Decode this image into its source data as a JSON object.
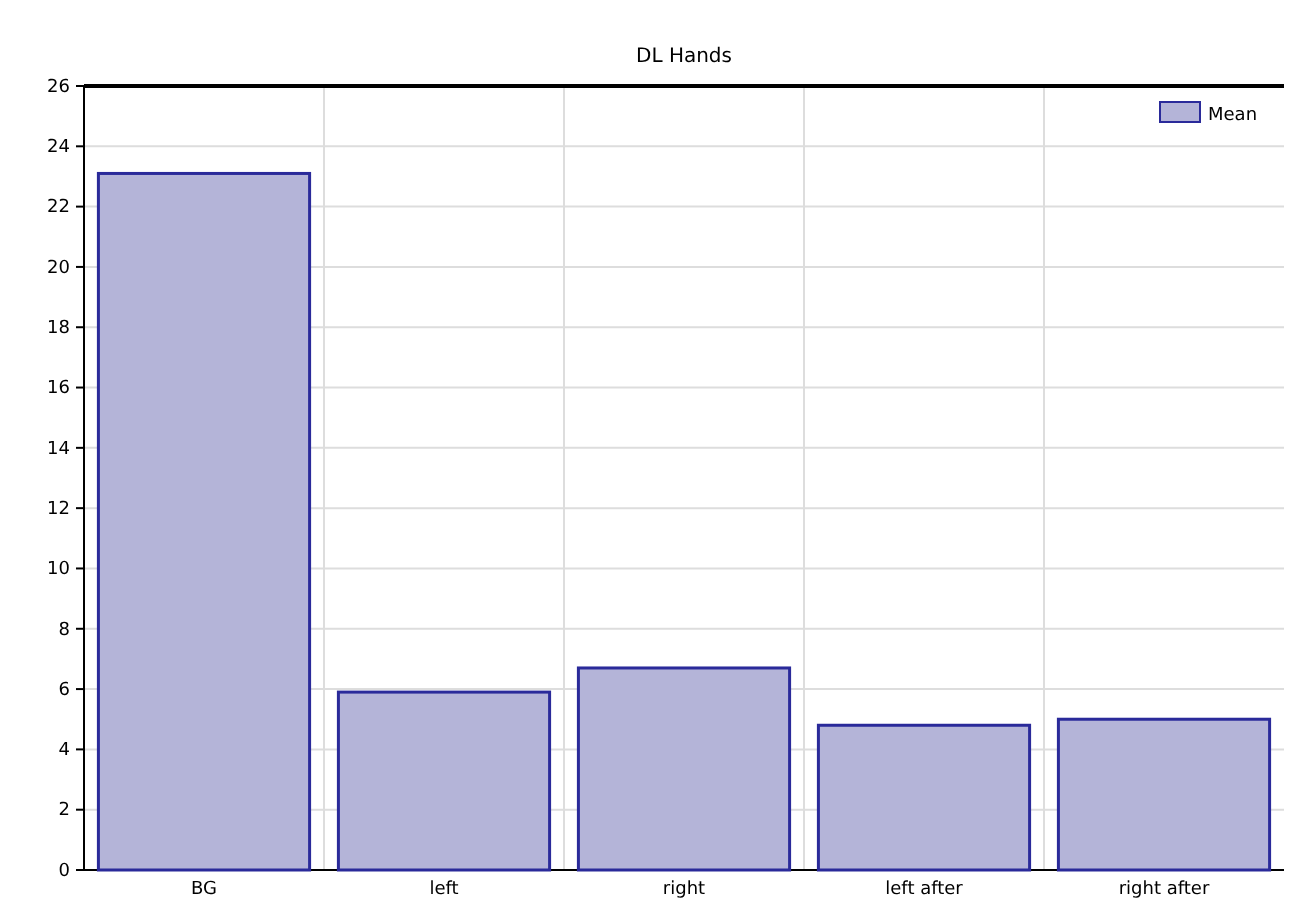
{
  "chart_data": {
    "type": "bar",
    "title": "DL Hands",
    "categories": [
      "BG",
      "left",
      "right",
      "left after",
      "right after"
    ],
    "series": [
      {
        "name": "Mean",
        "color": "#b4b4d8",
        "values": [
          23.1,
          5.9,
          6.7,
          4.8,
          5.0
        ]
      }
    ],
    "ylim": [
      0,
      26
    ],
    "yticks": [
      0,
      2,
      4,
      6,
      8,
      10,
      12,
      14,
      16,
      18,
      20,
      22,
      24,
      26
    ],
    "grid": true,
    "legend": "top right"
  }
}
